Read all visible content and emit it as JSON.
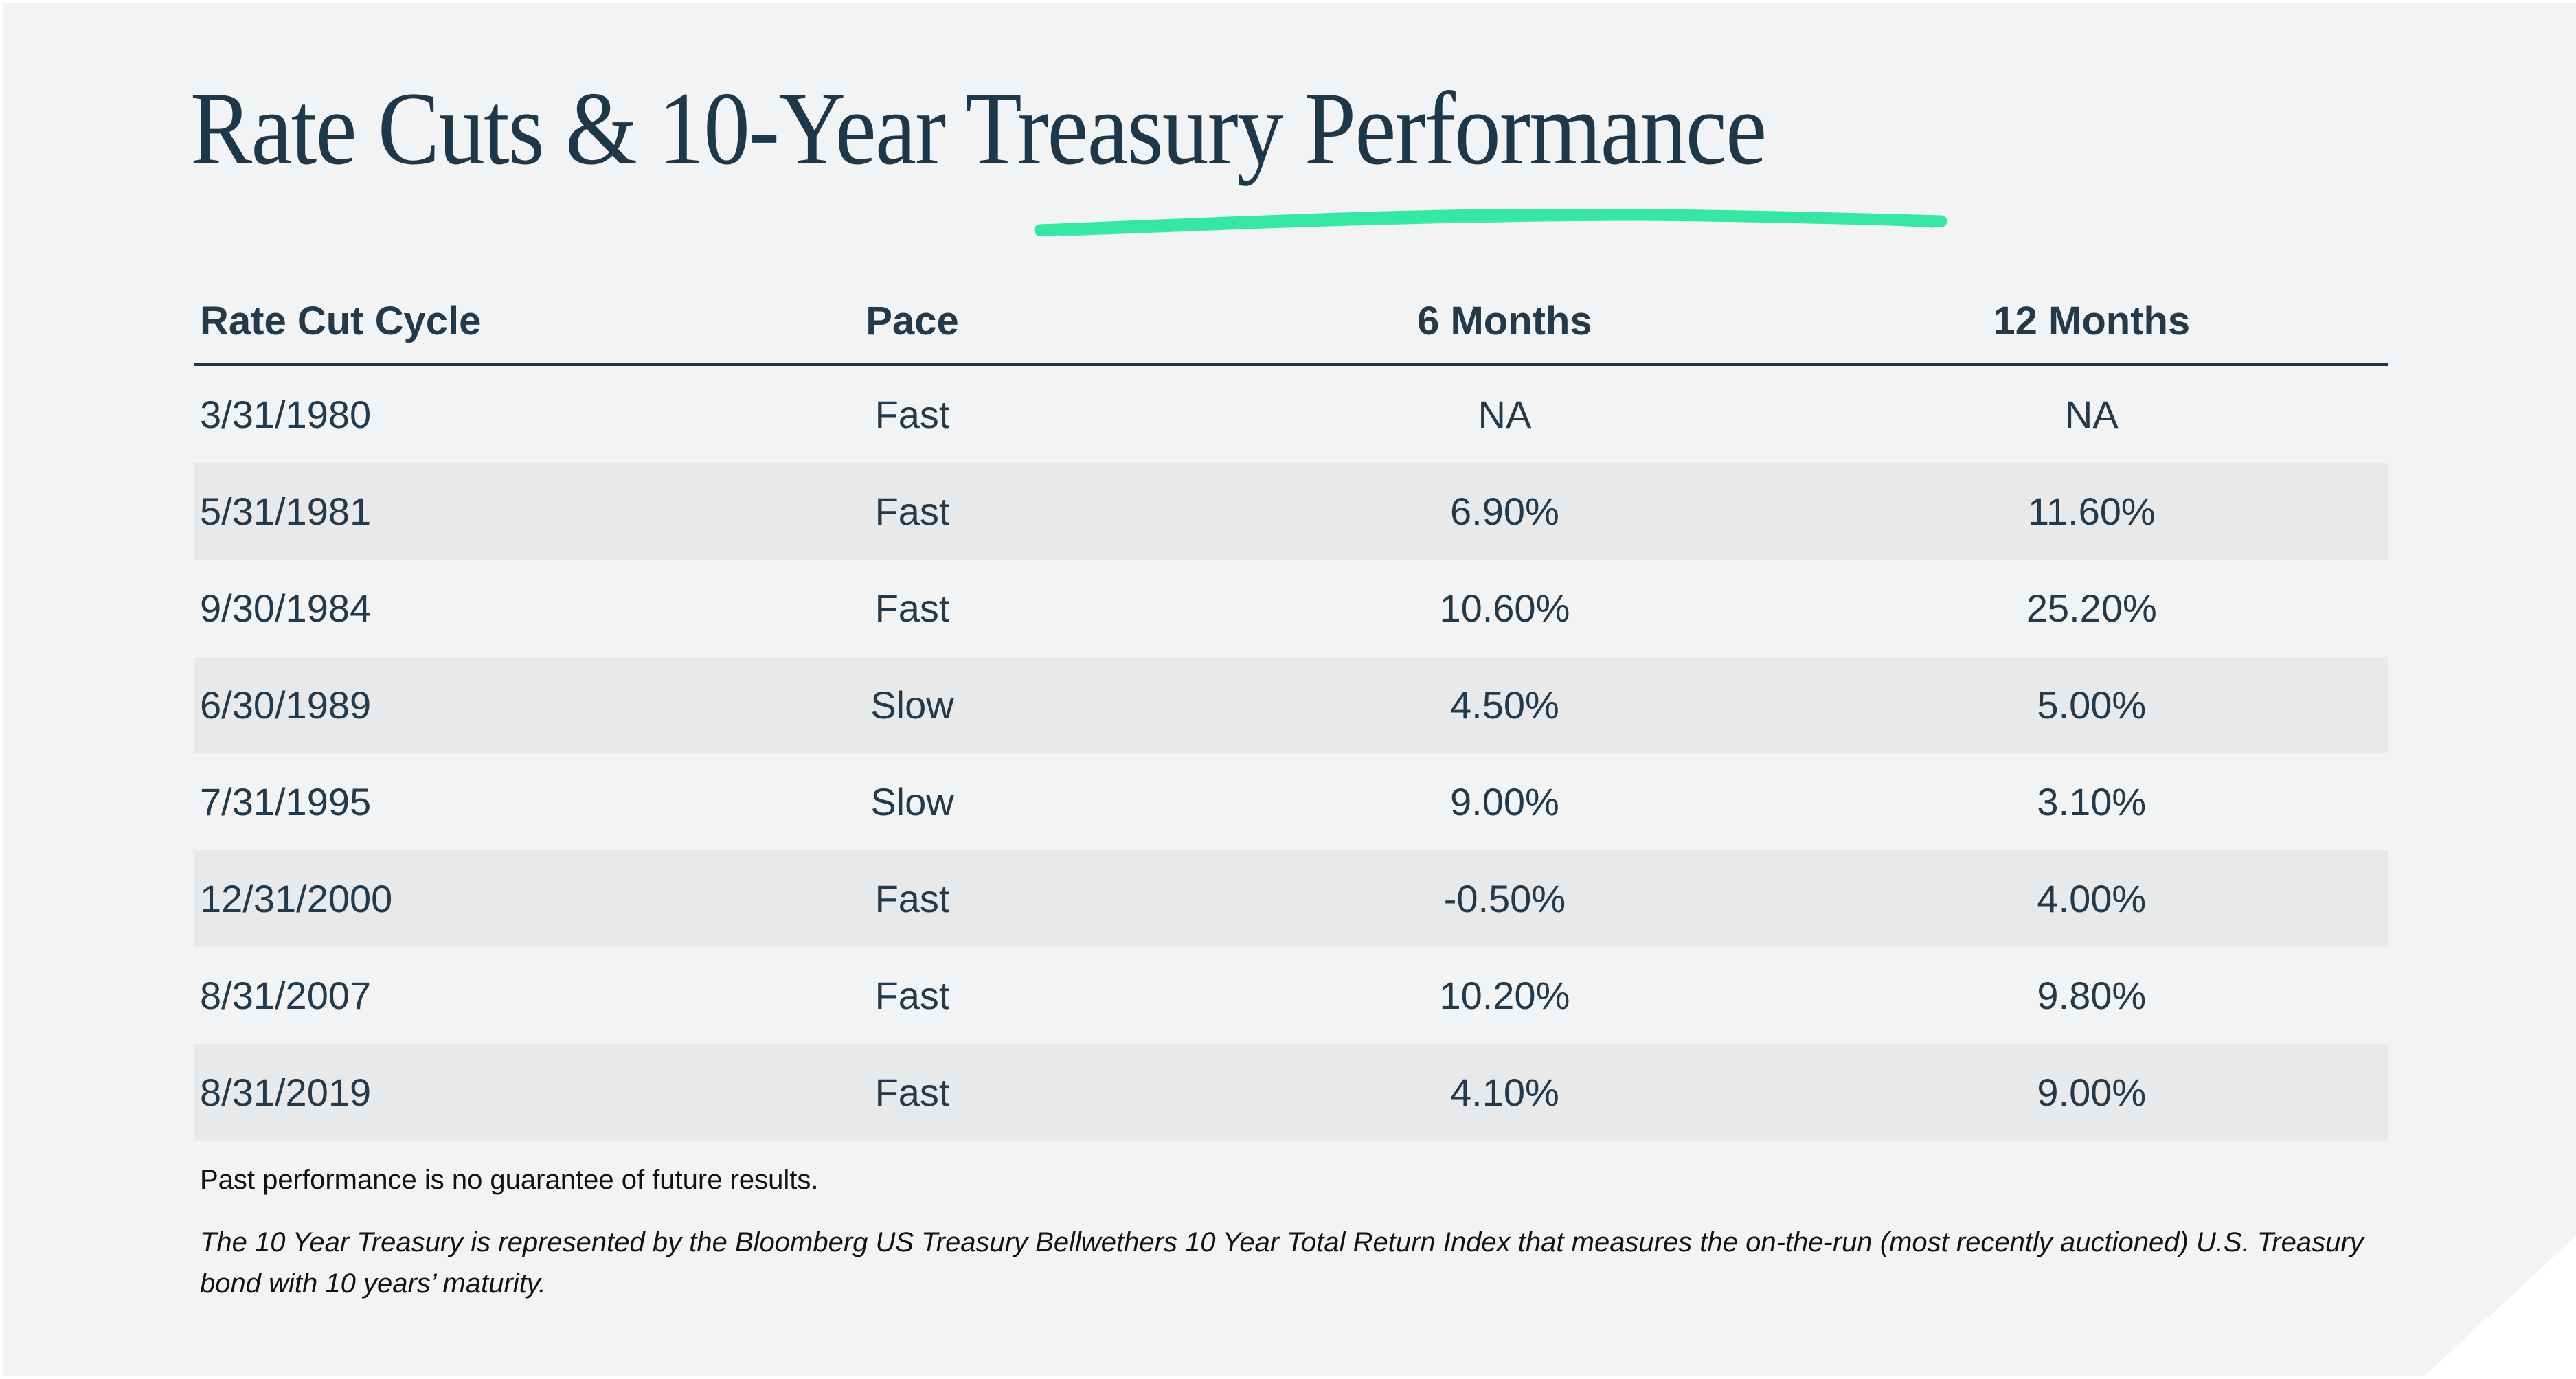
{
  "header": {
    "title": "Rate Cuts & 10-Year Treasury Performance"
  },
  "colors": {
    "panel_background": "#f2f3f4",
    "row_stripe": "#e8e9eb",
    "navy_text": "#1e3849",
    "accent_green": "#35e7a3",
    "footnote_text": "#121212"
  },
  "footnotes": {
    "past_performance": "Past performance is no guarantee of future results.",
    "index_definition": "The 10 Year Treasury is represented by the Bloomberg US Treasury Bellwethers 10 Year Total Return Index that measures the on-the-run (most recently auctioned) U.S. Treasury bond with 10 years’ maturity."
  },
  "chart_data": {
    "type": "table",
    "title": "Rate Cuts & 10-Year Treasury Performance",
    "columns": [
      "Rate Cut Cycle",
      "Pace",
      "6 Months",
      "12 Months"
    ],
    "rows": [
      [
        "3/31/1980",
        "Fast",
        "NA",
        "NA"
      ],
      [
        "5/31/1981",
        "Fast",
        "6.90%",
        "11.60%"
      ],
      [
        "9/30/1984",
        "Fast",
        "10.60%",
        "25.20%"
      ],
      [
        "6/30/1989",
        "Slow",
        "4.50%",
        "5.00%"
      ],
      [
        "7/31/1995",
        "Slow",
        "9.00%",
        "3.10%"
      ],
      [
        "12/31/2000",
        "Fast",
        "-0.50%",
        "4.00%"
      ],
      [
        "8/31/2007",
        "Fast",
        "10.20%",
        "9.80%"
      ],
      [
        "8/31/2019",
        "Fast",
        "4.10%",
        "9.00%"
      ]
    ],
    "layout": {
      "stripe_rows": "even rows shaded",
      "first_column_align": "left",
      "other_columns_align": "center"
    }
  }
}
